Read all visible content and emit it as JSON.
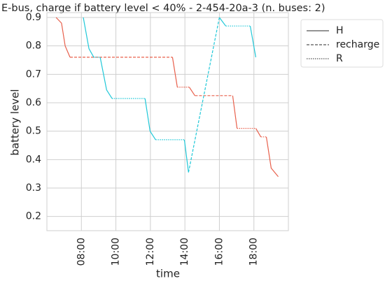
{
  "chart_data": {
    "type": "line",
    "title": "E-bus, charge if battery level < 40% - 2-454-20a-3 (n. buses: 2)",
    "x_label": "time",
    "y_label": "battery level",
    "xlim": [
      6,
      20
    ],
    "ylim": [
      0.15,
      0.9
    ],
    "xticks": [
      {
        "value": 8,
        "label": "08:00"
      },
      {
        "value": 10,
        "label": "10:00"
      },
      {
        "value": 12,
        "label": "12:00"
      },
      {
        "value": 14,
        "label": "14:00"
      },
      {
        "value": 16,
        "label": "16:00"
      },
      {
        "value": 18,
        "label": "18:00"
      }
    ],
    "yticks": [
      0.2,
      0.3,
      0.4,
      0.5,
      0.6,
      0.7,
      0.8,
      0.9
    ],
    "grid": true,
    "legend_position": "outside-right",
    "legend": [
      {
        "label": "H",
        "style": "solid"
      },
      {
        "label": "recharge",
        "style": "dashed"
      },
      {
        "label": "R",
        "style": "dotted"
      }
    ],
    "series": [
      {
        "color": "#e8604c",
        "style": "solid",
        "x": [
          6.53,
          6.85,
          7.06,
          7.34
        ],
        "values": [
          0.9,
          0.88,
          0.8,
          0.76
        ]
      },
      {
        "color": "#e8604c",
        "style": "dashed",
        "x": [
          7.34,
          13.28
        ],
        "values": [
          0.76,
          0.76
        ]
      },
      {
        "color": "#e8604c",
        "style": "solid",
        "x": [
          13.28,
          13.56
        ],
        "values": [
          0.76,
          0.655
        ]
      },
      {
        "color": "#e8604c",
        "style": "dotted",
        "x": [
          13.56,
          14.25
        ],
        "values": [
          0.655,
          0.655
        ]
      },
      {
        "color": "#e8604c",
        "style": "solid",
        "x": [
          14.25,
          14.58
        ],
        "values": [
          0.655,
          0.625
        ]
      },
      {
        "color": "#e8604c",
        "style": "dashed",
        "x": [
          14.58,
          16.77
        ],
        "values": [
          0.625,
          0.625
        ]
      },
      {
        "color": "#e8604c",
        "style": "solid",
        "x": [
          16.77,
          17.02
        ],
        "values": [
          0.625,
          0.51
        ]
      },
      {
        "color": "#e8604c",
        "style": "dotted",
        "x": [
          17.02,
          18.11
        ],
        "values": [
          0.51,
          0.51
        ]
      },
      {
        "color": "#e8604c",
        "style": "solid",
        "x": [
          18.11,
          18.4
        ],
        "values": [
          0.51,
          0.48
        ]
      },
      {
        "color": "#e8604c",
        "style": "dotted",
        "x": [
          18.4,
          18.72
        ],
        "values": [
          0.48,
          0.48
        ]
      },
      {
        "color": "#e8604c",
        "style": "solid",
        "x": [
          18.72,
          19.0,
          19.41
        ],
        "values": [
          0.48,
          0.37,
          0.34
        ]
      },
      {
        "color": "#1fc8d8",
        "style": "solid",
        "x": [
          8.11,
          8.44,
          8.72
        ],
        "values": [
          0.9,
          0.79,
          0.76
        ]
      },
      {
        "color": "#1fc8d8",
        "style": "dotted",
        "x": [
          8.72,
          9.09
        ],
        "values": [
          0.76,
          0.76
        ]
      },
      {
        "color": "#1fc8d8",
        "style": "solid",
        "x": [
          9.09,
          9.46,
          9.78
        ],
        "values": [
          0.76,
          0.645,
          0.615
        ]
      },
      {
        "color": "#1fc8d8",
        "style": "dotted",
        "x": [
          9.78,
          11.69
        ],
        "values": [
          0.615,
          0.615
        ]
      },
      {
        "color": "#1fc8d8",
        "style": "solid",
        "x": [
          11.69,
          11.98,
          12.3
        ],
        "values": [
          0.615,
          0.5,
          0.47
        ]
      },
      {
        "color": "#1fc8d8",
        "style": "dotted",
        "x": [
          12.3,
          13.97
        ],
        "values": [
          0.47,
          0.47
        ]
      },
      {
        "color": "#1fc8d8",
        "style": "solid",
        "x": [
          13.97,
          14.21
        ],
        "values": [
          0.47,
          0.355
        ]
      },
      {
        "color": "#1fc8d8",
        "style": "dashed",
        "x": [
          14.21,
          16.0
        ],
        "values": [
          0.355,
          0.9
        ]
      },
      {
        "color": "#1fc8d8",
        "style": "solid",
        "x": [
          16.0,
          16.37
        ],
        "values": [
          0.9,
          0.87
        ]
      },
      {
        "color": "#1fc8d8",
        "style": "dotted",
        "x": [
          16.37,
          17.79
        ],
        "values": [
          0.87,
          0.87
        ]
      },
      {
        "color": "#1fc8d8",
        "style": "solid",
        "x": [
          17.79,
          18.11
        ],
        "values": [
          0.87,
          0.76
        ]
      }
    ]
  }
}
